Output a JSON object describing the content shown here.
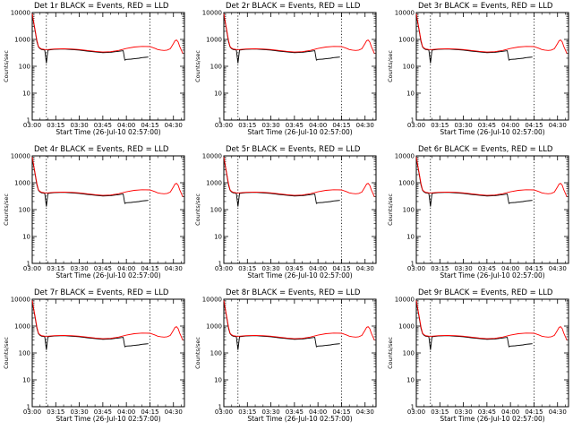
{
  "colors": {
    "events": "#000000",
    "lld": "#ff0000",
    "background": "#ffffff"
  },
  "chart_data": {
    "type": "line",
    "shared": {
      "xlabel": "Start Time (26-Jul-10 02:57:00)",
      "ylabel": "Counts/sec",
      "x_tick_labels": [
        "03:00",
        "03:15",
        "03:30",
        "03:45",
        "04:00",
        "04:15",
        "04:30"
      ],
      "x_tick_values_min": [
        0,
        15,
        30,
        45,
        60,
        75,
        90
      ],
      "xlim_min": [
        0,
        97
      ],
      "y_scale": "log",
      "ylim": [
        1,
        10000
      ],
      "y_tick_labels": [
        "1",
        "10",
        "100",
        "1000",
        "10000"
      ],
      "y_tick_values": [
        1,
        10,
        100,
        1000,
        10000
      ],
      "vertical_dotted_lines_min": [
        9,
        75
      ],
      "series": [
        {
          "name": "Events",
          "color": "#000000",
          "x_min": [
            0,
            2,
            3,
            4,
            5,
            6,
            7,
            8,
            9,
            10,
            14,
            20,
            25,
            30,
            35,
            40,
            45,
            50,
            55,
            58,
            59,
            60,
            63,
            65,
            68,
            70,
            72,
            74
          ],
          "y": [
            8500,
            1800,
            800,
            520,
            450,
            420,
            410,
            400,
            130,
            400,
            430,
            440,
            420,
            400,
            370,
            345,
            320,
            330,
            360,
            380,
            170,
            180,
            185,
            190,
            200,
            210,
            215,
            220
          ]
        },
        {
          "name": "LLD",
          "color": "#ff0000",
          "x_min": [
            0,
            2,
            3,
            4,
            5,
            6,
            7,
            8,
            10,
            14,
            20,
            25,
            30,
            35,
            40,
            45,
            50,
            55,
            60,
            65,
            70,
            75,
            78,
            80,
            82,
            84,
            86,
            88,
            90,
            91,
            92,
            93,
            94,
            95,
            96
          ],
          "y": [
            9000,
            2000,
            900,
            540,
            470,
            440,
            430,
            420,
            420,
            440,
            450,
            440,
            420,
            390,
            360,
            340,
            350,
            390,
            460,
            520,
            550,
            540,
            470,
            420,
            400,
            390,
            400,
            450,
            700,
            900,
            950,
            800,
            550,
            400,
            300
          ]
        }
      ]
    },
    "panels": [
      {
        "title": "Det 1r BLACK = Events, RED = LLD"
      },
      {
        "title": "Det 2r BLACK = Events, RED = LLD"
      },
      {
        "title": "Det 3r BLACK = Events, RED = LLD"
      },
      {
        "title": "Det 4r BLACK = Events, RED = LLD"
      },
      {
        "title": "Det 5r BLACK = Events, RED = LLD"
      },
      {
        "title": "Det 6r BLACK = Events, RED = LLD"
      },
      {
        "title": "Det 7r BLACK = Events, RED = LLD"
      },
      {
        "title": "Det 8r BLACK = Events, RED = LLD"
      },
      {
        "title": "Det 9r BLACK = Events, RED = LLD"
      }
    ]
  }
}
